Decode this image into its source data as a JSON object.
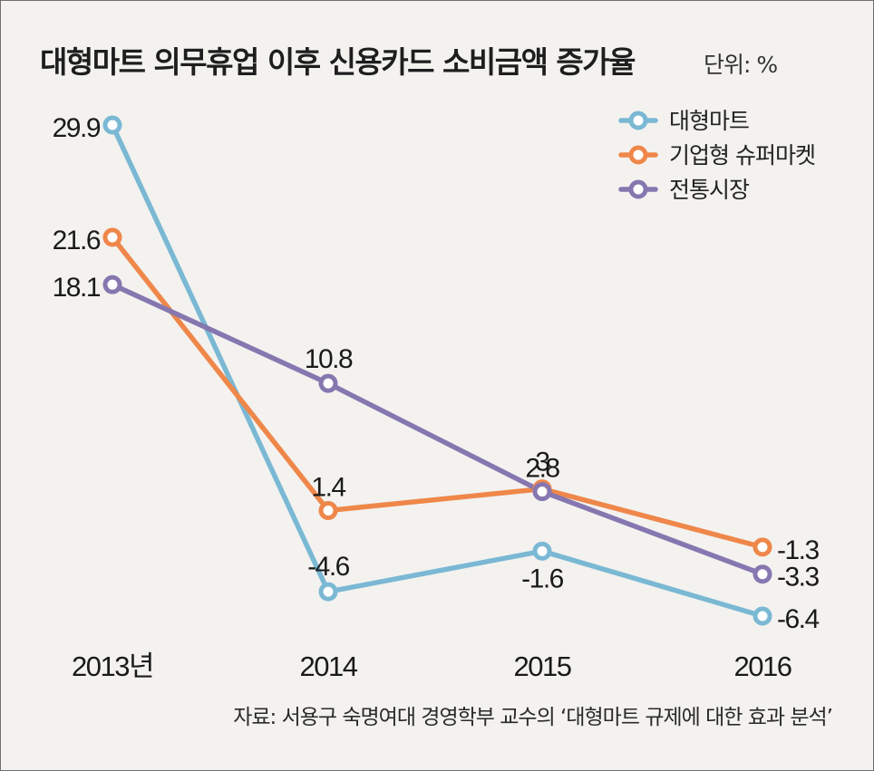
{
  "chart_data": {
    "type": "line",
    "title": "대형마트 의무휴업 이후 신용카드 소비금액 증가율",
    "unit_label": "단위: %",
    "categories": [
      "2013년",
      "2014",
      "2015",
      "2016"
    ],
    "ylim": [
      -6.4,
      29.9
    ],
    "grid": false,
    "legend_position": "top-right",
    "series": [
      {
        "name": "대형마트",
        "color": "#7ab8d4",
        "values": [
          29.9,
          -4.6,
          -1.6,
          -6.4
        ],
        "labels": [
          "29.9",
          "-4.6",
          "-1.6",
          "-6.4"
        ]
      },
      {
        "name": "기업형 슈퍼마켓",
        "color": "#ef874a",
        "values": [
          21.6,
          1.4,
          3,
          -1.3
        ],
        "labels": [
          "21.6",
          "1.4",
          "3",
          "-1.3"
        ]
      },
      {
        "name": "전통시장",
        "color": "#8677b0",
        "values": [
          18.1,
          10.8,
          2.8,
          -3.3
        ],
        "labels": [
          "18.1",
          "10.8",
          "2.8",
          "-3.3"
        ]
      }
    ],
    "source": "자료: 서용구 숙명여대 경영학부 교수의 ‘대형마트 규제에 대한 효과 분석’"
  }
}
